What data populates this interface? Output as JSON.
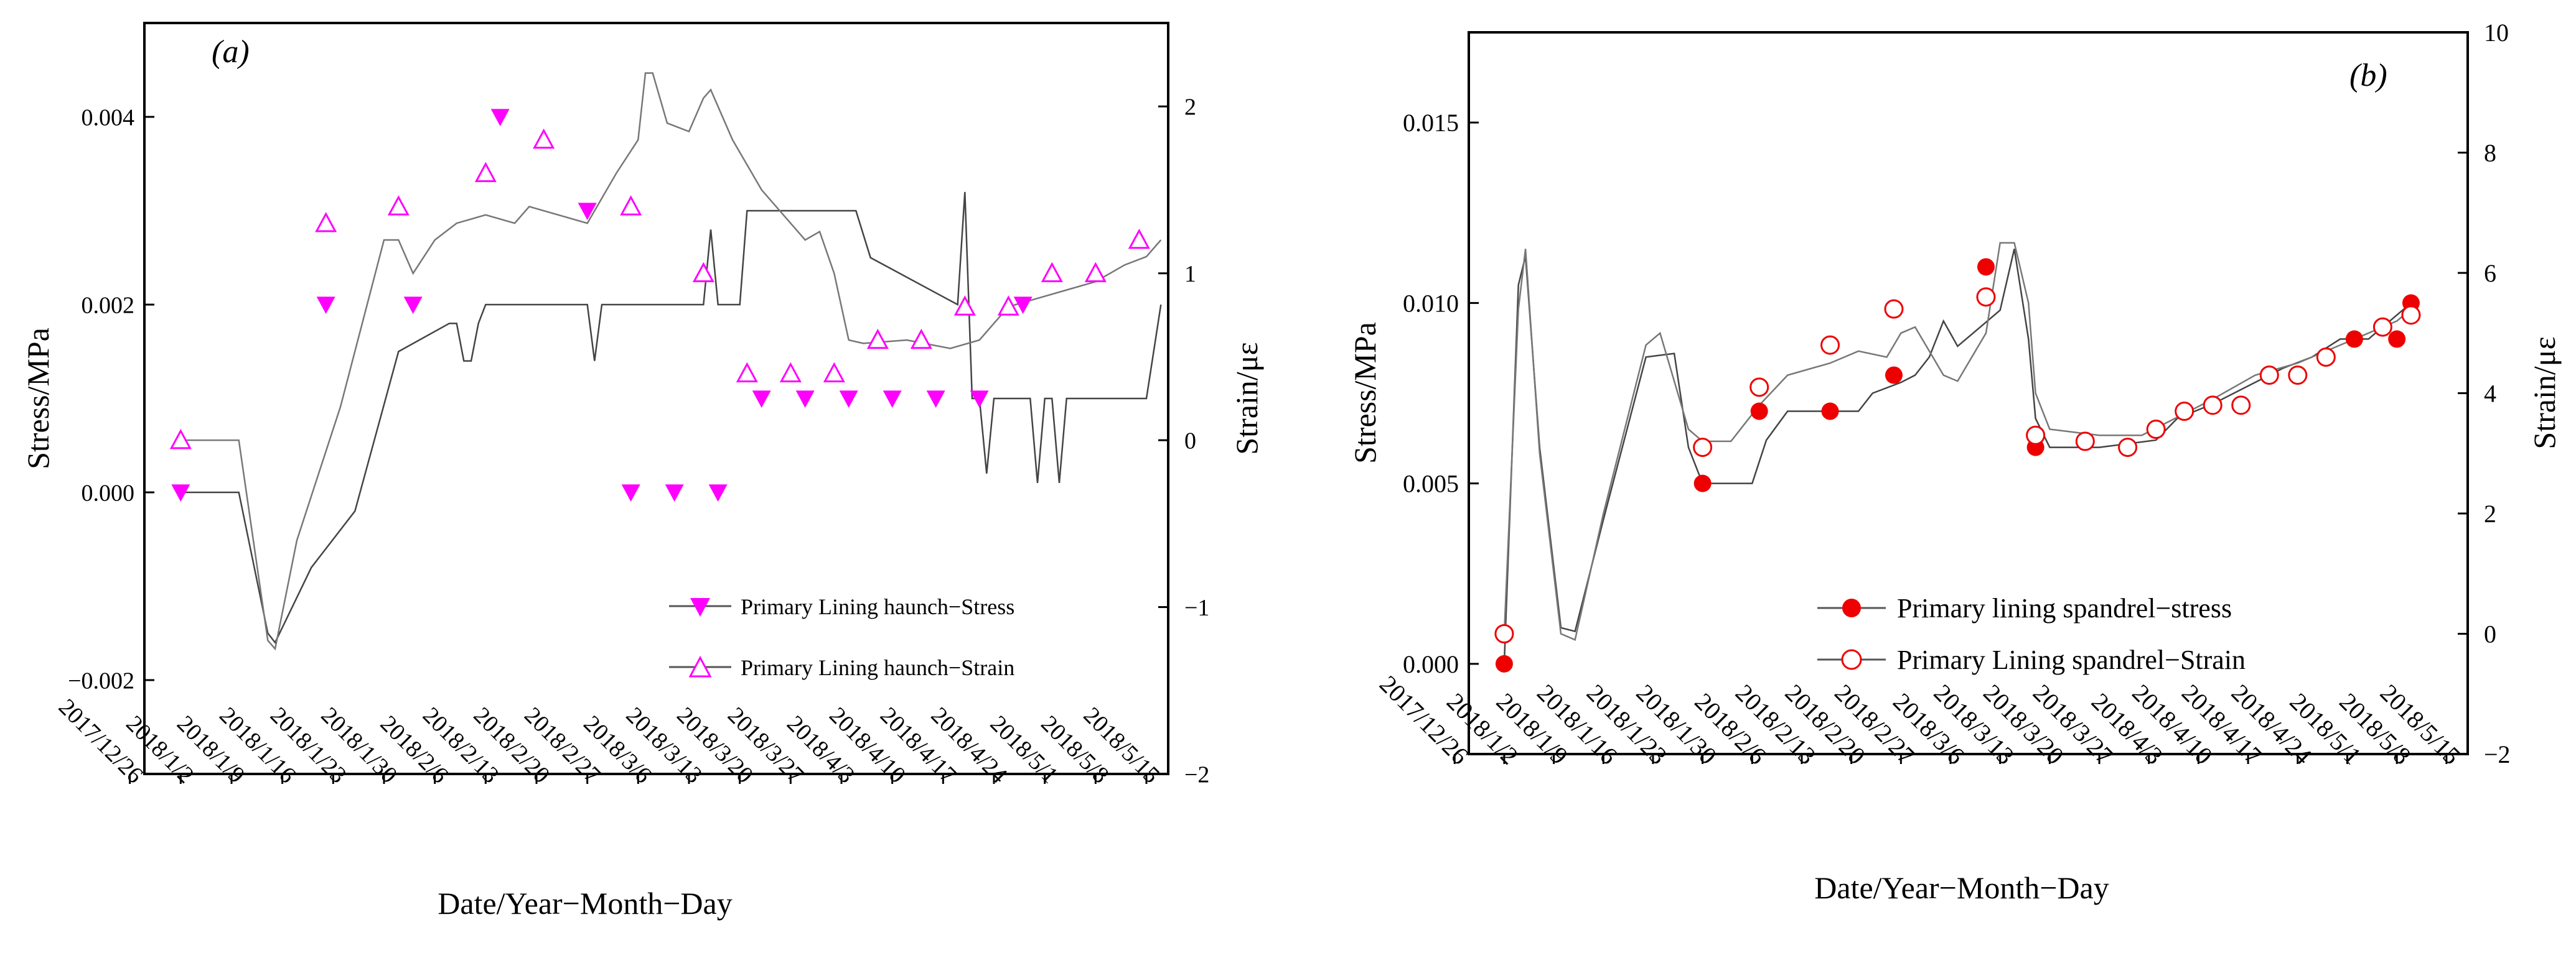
{
  "chart_data": [
    {
      "panel": "(a)",
      "type": "line",
      "xlabel": "Date/Year−Month−Day",
      "ylabel": "Stress/MPa",
      "y2label": "Strain/με",
      "x_ticks": [
        "2017/12/26",
        "2018/1/2",
        "2018/1/9",
        "2018/1/16",
        "2018/1/23",
        "2018/1/30",
        "2018/2/6",
        "2018/2/13",
        "2018/2/20",
        "2018/2/27",
        "2018/3/6",
        "2018/3/13",
        "2018/3/20",
        "2018/3/27",
        "2018/4/3",
        "2018/4/10",
        "2018/4/17",
        "2018/4/24",
        "2018/5/1",
        "2018/5/8",
        "2018/5/15"
      ],
      "xlim": [
        -5,
        136
      ],
      "ylim": [
        -0.003,
        0.005
      ],
      "y_ticks": [
        -0.002,
        0.0,
        0.002,
        0.004
      ],
      "y_tick_labels": [
        "−0.002",
        "0.000",
        "0.002",
        "0.004"
      ],
      "y2lim": [
        -2,
        2.5
      ],
      "y2_ticks": [
        -2,
        -1,
        0,
        1,
        2
      ],
      "y2_tick_labels": [
        "−2",
        "−1",
        "0",
        "1",
        "2"
      ],
      "legend_position": "lower-right",
      "series": [
        {
          "name": "Primary Lining haunch−Stress",
          "axis": "left",
          "marker": "filled-triangle-down",
          "color": "#ff00ff",
          "line": [
            [
              0,
              0
            ],
            [
              8,
              0
            ],
            [
              12,
              -0.0015
            ],
            [
              13,
              -0.0016
            ],
            [
              18,
              -0.0008
            ],
            [
              24,
              -0.0002
            ],
            [
              30,
              0.0015
            ],
            [
              37,
              0.0018
            ],
            [
              38,
              0.0018
            ],
            [
              39,
              0.0014
            ],
            [
              40,
              0.0014
            ],
            [
              41,
              0.0018
            ],
            [
              42,
              0.002
            ],
            [
              56,
              0.002
            ],
            [
              57,
              0.0014
            ],
            [
              58,
              0.002
            ],
            [
              72,
              0.002
            ],
            [
              73,
              0.0028
            ],
            [
              74,
              0.002
            ],
            [
              77,
              0.002
            ],
            [
              78,
              0.003
            ],
            [
              93,
              0.003
            ],
            [
              95,
              0.0025
            ],
            [
              107,
              0.002
            ],
            [
              108,
              0.0032
            ],
            [
              109,
              0.001
            ],
            [
              110,
              0.001
            ],
            [
              111,
              0.0002
            ],
            [
              112,
              0.001
            ],
            [
              117,
              0.001
            ],
            [
              118,
              0.0001
            ],
            [
              119,
              0.001
            ],
            [
              120,
              0.001
            ],
            [
              121,
              0.0001
            ],
            [
              122,
              0.001
            ],
            [
              133,
              0.001
            ],
            [
              135,
              0.002
            ]
          ],
          "markers": [
            [
              0,
              0
            ],
            [
              20,
              0.002
            ],
            [
              32,
              0.002
            ],
            [
              44,
              0.004
            ],
            [
              56,
              0.003
            ],
            [
              62,
              0.0
            ],
            [
              68,
              0.0
            ],
            [
              74,
              0.0
            ],
            [
              80,
              0.001
            ],
            [
              86,
              0.001
            ],
            [
              92,
              0.001
            ],
            [
              98,
              0.001
            ],
            [
              104,
              0.001
            ],
            [
              110,
              0.001
            ],
            [
              116,
              0.002
            ]
          ]
        },
        {
          "name": "Primary Lining haunch−Strain",
          "axis": "right",
          "marker": "open-triangle-up",
          "color": "#ff00ff",
          "line": [
            [
              0,
              0
            ],
            [
              8,
              0
            ],
            [
              12,
              -1.2
            ],
            [
              13,
              -1.25
            ],
            [
              16,
              -0.6
            ],
            [
              22,
              0.2
            ],
            [
              28,
              1.2
            ],
            [
              30,
              1.2
            ],
            [
              32,
              1.0
            ],
            [
              35,
              1.2
            ],
            [
              38,
              1.3
            ],
            [
              42,
              1.35
            ],
            [
              46,
              1.3
            ],
            [
              48,
              1.4
            ],
            [
              52,
              1.35
            ],
            [
              56,
              1.3
            ],
            [
              58,
              1.45
            ],
            [
              60,
              1.6
            ],
            [
              63,
              1.8
            ],
            [
              64,
              2.2
            ],
            [
              65,
              2.2
            ],
            [
              67,
              1.9
            ],
            [
              70,
              1.85
            ],
            [
              72,
              2.05
            ],
            [
              73,
              2.1
            ],
            [
              76,
              1.8
            ],
            [
              80,
              1.5
            ],
            [
              84,
              1.3
            ],
            [
              86,
              1.2
            ],
            [
              88,
              1.25
            ],
            [
              90,
              1.0
            ],
            [
              92,
              0.6
            ],
            [
              94,
              0.58
            ],
            [
              100,
              0.6
            ],
            [
              106,
              0.55
            ],
            [
              110,
              0.6
            ],
            [
              114,
              0.8
            ],
            [
              118,
              0.85
            ],
            [
              122,
              0.9
            ],
            [
              126,
              0.95
            ],
            [
              130,
              1.05
            ],
            [
              133,
              1.1
            ],
            [
              135,
              1.2
            ]
          ],
          "markers": [
            [
              0,
              0
            ],
            [
              20,
              1.3
            ],
            [
              30,
              1.4
            ],
            [
              42,
              1.6
            ],
            [
              50,
              1.8
            ],
            [
              62,
              1.4
            ],
            [
              72,
              1.0
            ],
            [
              78,
              0.4
            ],
            [
              84,
              0.4
            ],
            [
              90,
              0.4
            ],
            [
              96,
              0.6
            ],
            [
              102,
              0.6
            ],
            [
              108,
              0.8
            ],
            [
              114,
              0.8
            ],
            [
              120,
              1.0
            ],
            [
              126,
              1.0
            ],
            [
              132,
              1.2
            ]
          ]
        }
      ]
    },
    {
      "panel": "(b)",
      "type": "line",
      "xlabel": "Date/Year−Month−Day",
      "ylabel": "Stress/MPa",
      "y2label": "Strain/με",
      "x_ticks": [
        "2017/12/26",
        "2018/1/2",
        "2018/1/9",
        "2018/1/16",
        "2018/1/23",
        "2018/1/30",
        "2018/2/6",
        "2018/2/13",
        "2018/2/20",
        "2018/2/27",
        "2018/3/6",
        "2018/3/13",
        "2018/3/20",
        "2018/3/27",
        "2018/4/3",
        "2018/4/10",
        "2018/4/17",
        "2018/4/24",
        "2018/5/1",
        "2018/5/8",
        "2018/5/15"
      ],
      "xlim": [
        -5,
        136
      ],
      "ylim": [
        -0.0025,
        0.0175
      ],
      "y_ticks": [
        0.0,
        0.005,
        0.01,
        0.015
      ],
      "y_tick_labels": [
        "0.000",
        "0.005",
        "0.010",
        "0.015"
      ],
      "y2lim": [
        -2,
        10
      ],
      "y2_ticks": [
        -2,
        0,
        2,
        4,
        6,
        8,
        10
      ],
      "y2_tick_labels": [
        "−2",
        "0",
        "2",
        "4",
        "6",
        "8",
        "10"
      ],
      "legend_position": "lower-center",
      "series": [
        {
          "name": "Primary lining spandrel−stress",
          "axis": "left",
          "marker": "filled-circle",
          "color": "#ee0000",
          "line": [
            [
              0,
              0
            ],
            [
              2,
              0.0105
            ],
            [
              3,
              0.0113
            ],
            [
              5,
              0.006
            ],
            [
              8,
              0.001
            ],
            [
              10,
              0.0009
            ],
            [
              14,
              0.004
            ],
            [
              20,
              0.0085
            ],
            [
              24,
              0.0086
            ],
            [
              26,
              0.006
            ],
            [
              28,
              0.005
            ],
            [
              35,
              0.005
            ],
            [
              37,
              0.0062
            ],
            [
              40,
              0.007
            ],
            [
              50,
              0.007
            ],
            [
              52,
              0.0075
            ],
            [
              56,
              0.0078
            ],
            [
              58,
              0.008
            ],
            [
              60,
              0.0085
            ],
            [
              62,
              0.0095
            ],
            [
              64,
              0.0088
            ],
            [
              70,
              0.0098
            ],
            [
              72,
              0.0115
            ],
            [
              74,
              0.009
            ],
            [
              75,
              0.0068
            ],
            [
              77,
              0.006
            ],
            [
              84,
              0.006
            ],
            [
              92,
              0.0062
            ],
            [
              95,
              0.0068
            ],
            [
              100,
              0.0072
            ],
            [
              110,
              0.0082
            ],
            [
              114,
              0.0085
            ],
            [
              118,
              0.009
            ],
            [
              122,
              0.009
            ],
            [
              125,
              0.0095
            ],
            [
              128,
              0.01
            ]
          ],
          "markers": [
            [
              0,
              0
            ],
            [
              28,
              0.005
            ],
            [
              36,
              0.007
            ],
            [
              46,
              0.007
            ],
            [
              55,
              0.008
            ],
            [
              68,
              0.011
            ],
            [
              75,
              0.006
            ],
            [
              88,
              0.006
            ],
            [
              120,
              0.009
            ],
            [
              126,
              0.009
            ],
            [
              128,
              0.01
            ]
          ]
        },
        {
          "name": "Primary Lining spandrel−Strain",
          "axis": "right",
          "marker": "open-circle",
          "color": "#ee0000",
          "line": [
            [
              0,
              0
            ],
            [
              2,
              5.4
            ],
            [
              3,
              6.4
            ],
            [
              5,
              3.0
            ],
            [
              8,
              0
            ],
            [
              10,
              -0.1
            ],
            [
              14,
              2.0
            ],
            [
              20,
              4.8
            ],
            [
              22,
              5.0
            ],
            [
              24,
              4.2
            ],
            [
              26,
              3.4
            ],
            [
              28,
              3.2
            ],
            [
              32,
              3.2
            ],
            [
              36,
              3.8
            ],
            [
              40,
              4.3
            ],
            [
              46,
              4.5
            ],
            [
              50,
              4.7
            ],
            [
              54,
              4.6
            ],
            [
              56,
              5.0
            ],
            [
              58,
              5.1
            ],
            [
              60,
              4.7
            ],
            [
              62,
              4.3
            ],
            [
              64,
              4.2
            ],
            [
              68,
              5.0
            ],
            [
              70,
              6.5
            ],
            [
              72,
              6.5
            ],
            [
              74,
              5.5
            ],
            [
              75,
              4.0
            ],
            [
              77,
              3.4
            ],
            [
              84,
              3.3
            ],
            [
              90,
              3.3
            ],
            [
              95,
              3.6
            ],
            [
              100,
              3.9
            ],
            [
              106,
              4.3
            ],
            [
              112,
              4.5
            ],
            [
              118,
              4.8
            ],
            [
              122,
              5.0
            ],
            [
              126,
              5.2
            ],
            [
              128,
              5.4
            ]
          ],
          "markers": [
            [
              0,
              0
            ],
            [
              28,
              3.1
            ],
            [
              36,
              4.1
            ],
            [
              46,
              4.8
            ],
            [
              55,
              5.4
            ],
            [
              68,
              5.6
            ],
            [
              75,
              3.3
            ],
            [
              82,
              3.2
            ],
            [
              88,
              3.1
            ],
            [
              92,
              3.4
            ],
            [
              96,
              3.7
            ],
            [
              100,
              3.8
            ],
            [
              104,
              3.8
            ],
            [
              108,
              4.3
            ],
            [
              112,
              4.3
            ],
            [
              116,
              4.6
            ],
            [
              124,
              5.1
            ],
            [
              128,
              5.3
            ]
          ]
        }
      ]
    }
  ]
}
